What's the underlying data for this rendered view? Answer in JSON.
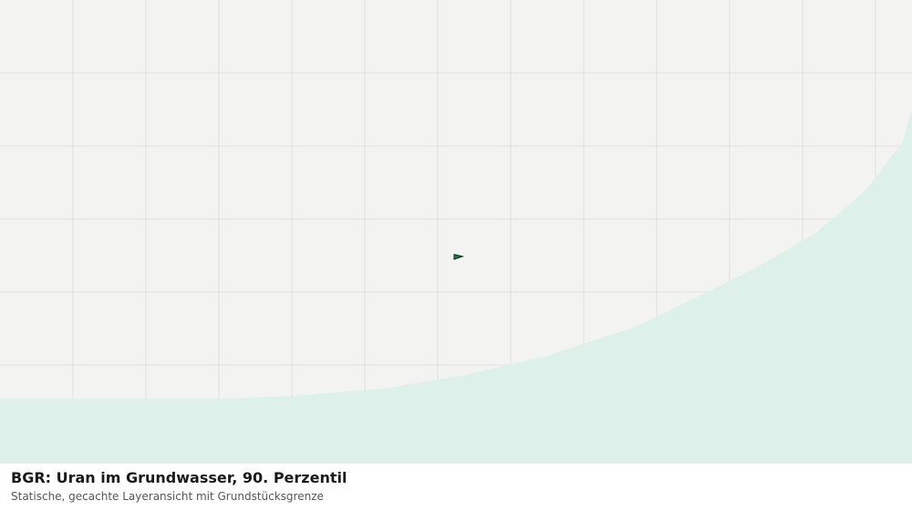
{
  "header": {
    "title": "BGR: Uran im Grundwasser, 90. Perzentil",
    "subtitle": "Statische, gecachte Layeransicht mit Grundstücksgrenze"
  }
}
